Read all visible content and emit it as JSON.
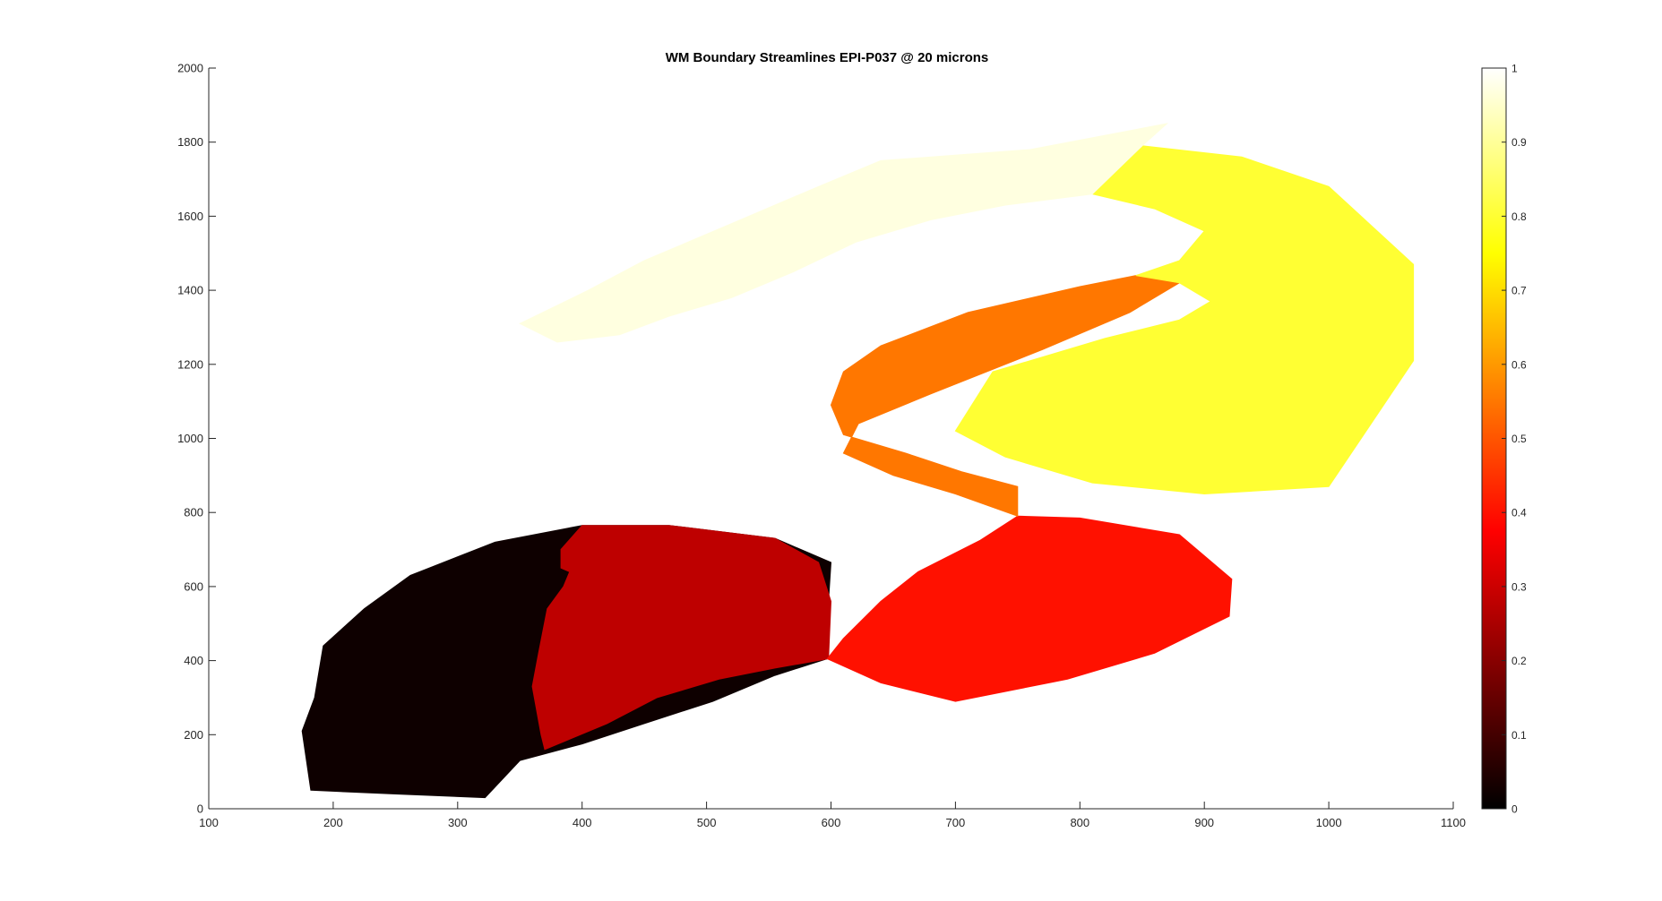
{
  "chart_data": {
    "type": "streamlines",
    "title": "WM Boundary Streamlines EPI-P037 @ 20 microns",
    "xlabel": "",
    "ylabel": "",
    "xlim": [
      100,
      1100
    ],
    "ylim": [
      0,
      2000
    ],
    "x_ticks": [
      100,
      200,
      300,
      400,
      500,
      600,
      700,
      800,
      900,
      1000,
      1100
    ],
    "y_ticks": [
      0,
      200,
      400,
      600,
      800,
      1000,
      1200,
      1400,
      1600,
      1800,
      2000
    ],
    "grid": false,
    "colormap": "hot",
    "colorbar": {
      "range": [
        0,
        1
      ],
      "ticks": [
        0,
        0.1,
        0.2,
        0.3,
        0.4,
        0.5,
        0.6,
        0.7,
        0.8,
        0.9,
        1
      ],
      "tick_labels": [
        "0",
        "0.1",
        "0.2",
        "0.3",
        "0.4",
        "0.5",
        "0.6",
        "0.7",
        "0.8",
        "0.9",
        "1"
      ],
      "placement": "right"
    },
    "regions": [
      {
        "value": 0.02,
        "outline": [
          [
            182,
            50
          ],
          [
            175,
            210
          ],
          [
            185,
            300
          ],
          [
            192,
            440
          ],
          [
            225,
            540
          ],
          [
            262,
            630
          ],
          [
            330,
            720
          ],
          [
            400,
            765
          ],
          [
            470,
            765
          ],
          [
            555,
            730
          ],
          [
            600,
            665
          ],
          [
            598,
            560
          ],
          [
            597,
            405
          ],
          [
            555,
            360
          ],
          [
            505,
            290
          ],
          [
            450,
            230
          ],
          [
            400,
            175
          ],
          [
            350,
            130
          ],
          [
            322,
            30
          ],
          [
            250,
            40
          ],
          [
            182,
            50
          ]
        ],
        "hole": [
          [
            383,
            650
          ],
          [
            382,
            630
          ],
          [
            370,
            600
          ],
          [
            365,
            540
          ],
          [
            362,
            460
          ],
          [
            355,
            370
          ],
          [
            362,
            280
          ],
          [
            367,
            165
          ],
          [
            350,
            110
          ],
          [
            322,
            30
          ],
          [
            300,
            25
          ],
          [
            260,
            30
          ]
        ]
      },
      {
        "value": 0.28,
        "outline": [
          [
            383,
            650
          ],
          [
            390,
            640
          ],
          [
            385,
            600
          ],
          [
            372,
            540
          ],
          [
            365,
            420
          ],
          [
            360,
            330
          ],
          [
            367,
            200
          ],
          [
            370,
            160
          ],
          [
            420,
            230
          ],
          [
            460,
            300
          ],
          [
            510,
            350
          ],
          [
            555,
            380
          ],
          [
            598,
            405
          ],
          [
            600,
            560
          ],
          [
            590,
            665
          ],
          [
            555,
            730
          ],
          [
            470,
            765
          ],
          [
            400,
            765
          ],
          [
            383,
            700
          ]
        ]
      },
      {
        "value": 0.4,
        "outline": [
          [
            597,
            405
          ],
          [
            640,
            340
          ],
          [
            700,
            290
          ],
          [
            790,
            350
          ],
          [
            860,
            420
          ],
          [
            920,
            520
          ],
          [
            922,
            620
          ],
          [
            880,
            740
          ],
          [
            800,
            785
          ],
          [
            750,
            790
          ],
          [
            720,
            725
          ],
          [
            670,
            640
          ],
          [
            640,
            560
          ],
          [
            610,
            460
          ]
        ]
      },
      {
        "value": 0.55,
        "outline": [
          [
            750,
            790
          ],
          [
            700,
            850
          ],
          [
            650,
            900
          ],
          [
            610,
            960
          ],
          [
            622,
            1040
          ],
          [
            680,
            1120
          ],
          [
            770,
            1240
          ],
          [
            840,
            1340
          ],
          [
            880,
            1420
          ],
          [
            845,
            1440
          ],
          [
            800,
            1410
          ],
          [
            710,
            1340
          ],
          [
            640,
            1250
          ],
          [
            610,
            1180
          ],
          [
            600,
            1090
          ],
          [
            610,
            1010
          ],
          [
            660,
            960
          ],
          [
            705,
            910
          ],
          [
            750,
            870
          ]
        ]
      },
      {
        "value": 0.8,
        "outline": [
          [
            845,
            1440
          ],
          [
            880,
            1420
          ],
          [
            905,
            1370
          ],
          [
            880,
            1320
          ],
          [
            820,
            1270
          ],
          [
            730,
            1180
          ],
          [
            700,
            1020
          ],
          [
            740,
            950
          ],
          [
            810,
            880
          ],
          [
            900,
            850
          ],
          [
            1000,
            870
          ],
          [
            1068,
            1210
          ],
          [
            1068,
            1470
          ],
          [
            1000,
            1680
          ],
          [
            930,
            1760
          ],
          [
            850,
            1790
          ],
          [
            810,
            1660
          ],
          [
            860,
            1620
          ],
          [
            900,
            1560
          ],
          [
            880,
            1480
          ]
        ]
      },
      {
        "value": 0.97,
        "outline": [
          [
            810,
            1660
          ],
          [
            850,
            1790
          ],
          [
            870,
            1850
          ],
          [
            760,
            1780
          ],
          [
            640,
            1750
          ],
          [
            590,
            1680
          ],
          [
            520,
            1580
          ],
          [
            450,
            1480
          ],
          [
            405,
            1400
          ],
          [
            350,
            1310
          ],
          [
            380,
            1260
          ],
          [
            430,
            1280
          ],
          [
            470,
            1330
          ],
          [
            520,
            1380
          ],
          [
            570,
            1450
          ],
          [
            620,
            1530
          ],
          [
            680,
            1590
          ],
          [
            740,
            1630
          ]
        ]
      }
    ]
  }
}
